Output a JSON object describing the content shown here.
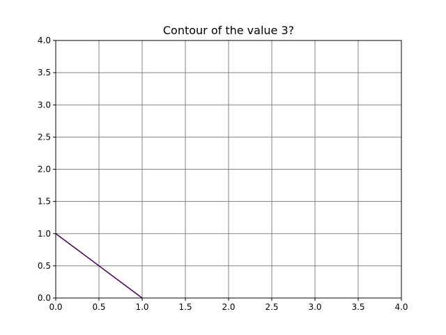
{
  "chart_data": {
    "type": "line",
    "title": "Contour of the value 3?",
    "xlabel": "",
    "ylabel": "",
    "xlim": [
      0,
      4
    ],
    "ylim": [
      0,
      4
    ],
    "x_ticks": [
      "0.0",
      "0.5",
      "1.0",
      "1.5",
      "2.0",
      "2.5",
      "3.0",
      "3.5",
      "4.0"
    ],
    "y_ticks": [
      "0.0",
      "0.5",
      "1.0",
      "1.5",
      "2.0",
      "2.5",
      "3.0",
      "3.5",
      "4.0"
    ],
    "grid": true,
    "series": [
      {
        "color": "#440154",
        "x": [
          0.0,
          1.0
        ],
        "y": [
          1.0,
          0.0
        ]
      }
    ]
  }
}
